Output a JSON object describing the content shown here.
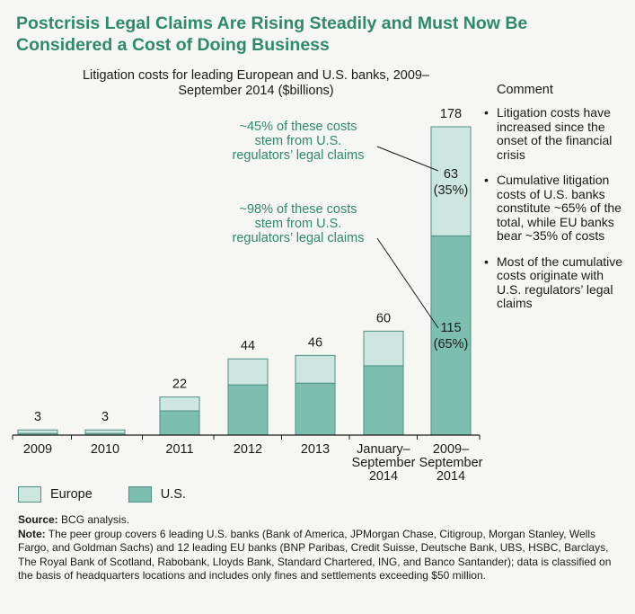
{
  "title": "Postcrisis Legal Claims Are Rising Steadily and Must Now Be Considered a Cost of Doing Business",
  "chart_caption": "Litigation costs for leading European and U.S. banks, 2009–September 2014 ($billions)",
  "comment_heading": "Comment",
  "comments": [
    "Litigation costs have increased since the onset of the financial crisis",
    "Cumulative litigation costs of U.S. banks constitute ~65% of the total, while EU banks bear ~35% of costs",
    "Most of the cumulative costs originate with U.S. regulators’ legal claims"
  ],
  "chart_data": {
    "type": "bar",
    "stacked": true,
    "categories": [
      "2009",
      "2010",
      "2011",
      "2012",
      "2013",
      "January–September 2014",
      "2009–September 2014"
    ],
    "category_lines": [
      [
        "2009"
      ],
      [
        "2010"
      ],
      [
        "2011"
      ],
      [
        "2012"
      ],
      [
        "2013"
      ],
      [
        "January–",
        "September",
        "2014"
      ],
      [
        "2009–",
        "September",
        "2014"
      ]
    ],
    "series": [
      {
        "name": "U.S.",
        "values": [
          1,
          1,
          14,
          29,
          30,
          40,
          115
        ]
      },
      {
        "name": "Europe",
        "values": [
          2,
          2,
          8,
          15,
          16,
          20,
          63
        ]
      }
    ],
    "totals": [
      3,
      3,
      22,
      44,
      46,
      60,
      178
    ],
    "segment_labels": [
      {
        "series": "Europe",
        "category": "2009–September 2014",
        "lines": [
          "63",
          "(35%)"
        ]
      },
      {
        "series": "U.S.",
        "category": "2009–September 2014",
        "lines": [
          "115",
          "(65%)"
        ]
      }
    ],
    "annotations": [
      {
        "lines": [
          "~45% of these costs",
          "stem from U.S.",
          "regulators’ legal claims"
        ]
      },
      {
        "lines": [
          "~98% of these costs",
          "stem from U.S.",
          "regulators’ legal claims"
        ]
      }
    ],
    "colors": {
      "U.S.": "#7dbfae",
      "Europe": "#cde7e0",
      "border": "#4f8f84",
      "annotation": "#2e8b6a"
    },
    "ylim": [
      0,
      178
    ]
  },
  "legend": {
    "europe": "Europe",
    "us": "U.S."
  },
  "notes": {
    "source_label": "Source:",
    "source_text": "BCG analysis.",
    "note_label": "Note:",
    "note_text": "The peer group covers 6 leading U.S. banks (Bank of America, JPMorgan Chase, Citigroup, Morgan Stanley, Wells Fargo, and Goldman Sachs) and 12 leading EU banks (BNP Paribas, Credit Suisse, Deutsche Bank, UBS, HSBC, Barclays, The Royal Bank of Scotland, Rabobank, Lloyds Bank, Standard Chartered, ING, and Banco Santander); data is classified on the basis of headquarters locations and includes only fines and settlements exceeding $50 million."
  }
}
